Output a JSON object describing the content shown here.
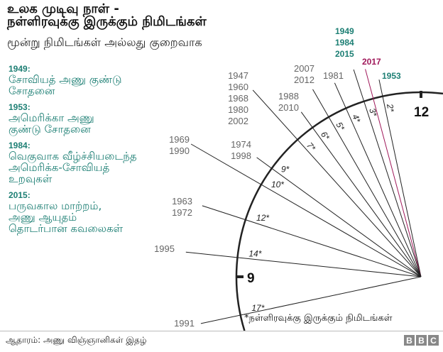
{
  "header": {
    "title_line1": "உலக முடிவு நாள் -",
    "title_line2": "நள்ளிரவுக்கு இருக்கும் நிமிடங்கள்",
    "subtitle": "மூன்று நிமிடங்கள் அல்லது குறைவாக"
  },
  "notes": [
    {
      "year": "1949:",
      "text": "சோவியத் அணு குண்டு சோதனை"
    },
    {
      "year": "1953:",
      "text": "அமெரிக்கா அணு குண்டு சோதனை"
    },
    {
      "year": "1984:",
      "text": "வெகுவாக வீழ்ச்சியடைந்த அமெரிக்க-சோவியத் உறவுகள்"
    },
    {
      "year": "2015:",
      "text": "பருவகால மாற்றம், அணு ஆயுதம் தொடர்பான கவலைகள்"
    }
  ],
  "clock": {
    "label_12": "12",
    "label_9": "9",
    "lines": [
      {
        "minutes": 2,
        "minute_label": "2*",
        "years": [
          "1953"
        ],
        "style": "teal"
      },
      {
        "minutes": 2.5,
        "minute_label": "",
        "years": [
          "2017"
        ],
        "style": "magenta"
      },
      {
        "minutes": 3,
        "minute_label": "3*",
        "years": [
          "1949",
          "1984",
          "2015"
        ],
        "style": "teal"
      },
      {
        "minutes": 4,
        "minute_label": "4*",
        "years": [
          "1981"
        ],
        "style": "grey"
      },
      {
        "minutes": 5,
        "minute_label": "5*",
        "years": [
          "2007",
          "2012"
        ],
        "style": "grey"
      },
      {
        "minutes": 6,
        "minute_label": "6*",
        "years": [
          "1988",
          "2010"
        ],
        "style": "grey"
      },
      {
        "minutes": 7,
        "minute_label": "7*",
        "years": [
          "1947",
          "1960",
          "1968",
          "1980",
          "2002"
        ],
        "style": "grey"
      },
      {
        "minutes": 9,
        "minute_label": "9*",
        "years": [
          "1974",
          "1998"
        ],
        "style": "grey"
      },
      {
        "minutes": 10,
        "minute_label": "10*",
        "years": [
          "1969",
          "1990"
        ],
        "style": "grey"
      },
      {
        "minutes": 12,
        "minute_label": "12*",
        "years": [
          "1963",
          "1972"
        ],
        "style": "grey"
      },
      {
        "minutes": 14,
        "minute_label": "14*",
        "years": [
          "1995"
        ],
        "style": "grey"
      },
      {
        "minutes": 17,
        "minute_label": "17*",
        "years": [
          "1991"
        ],
        "style": "grey"
      }
    ]
  },
  "footnote": "*நள்ளிரவுக்கு இருக்கும் நிமிடங்கள்",
  "footer": {
    "source": "ஆதாரம்: அணு விஞ்ஞானிகள் இதழ்",
    "logo": [
      "B",
      "B",
      "C"
    ]
  },
  "colors": {
    "teal": "#1d7f74",
    "magenta": "#a0185a",
    "grey": "#666666",
    "line": "#222222"
  }
}
